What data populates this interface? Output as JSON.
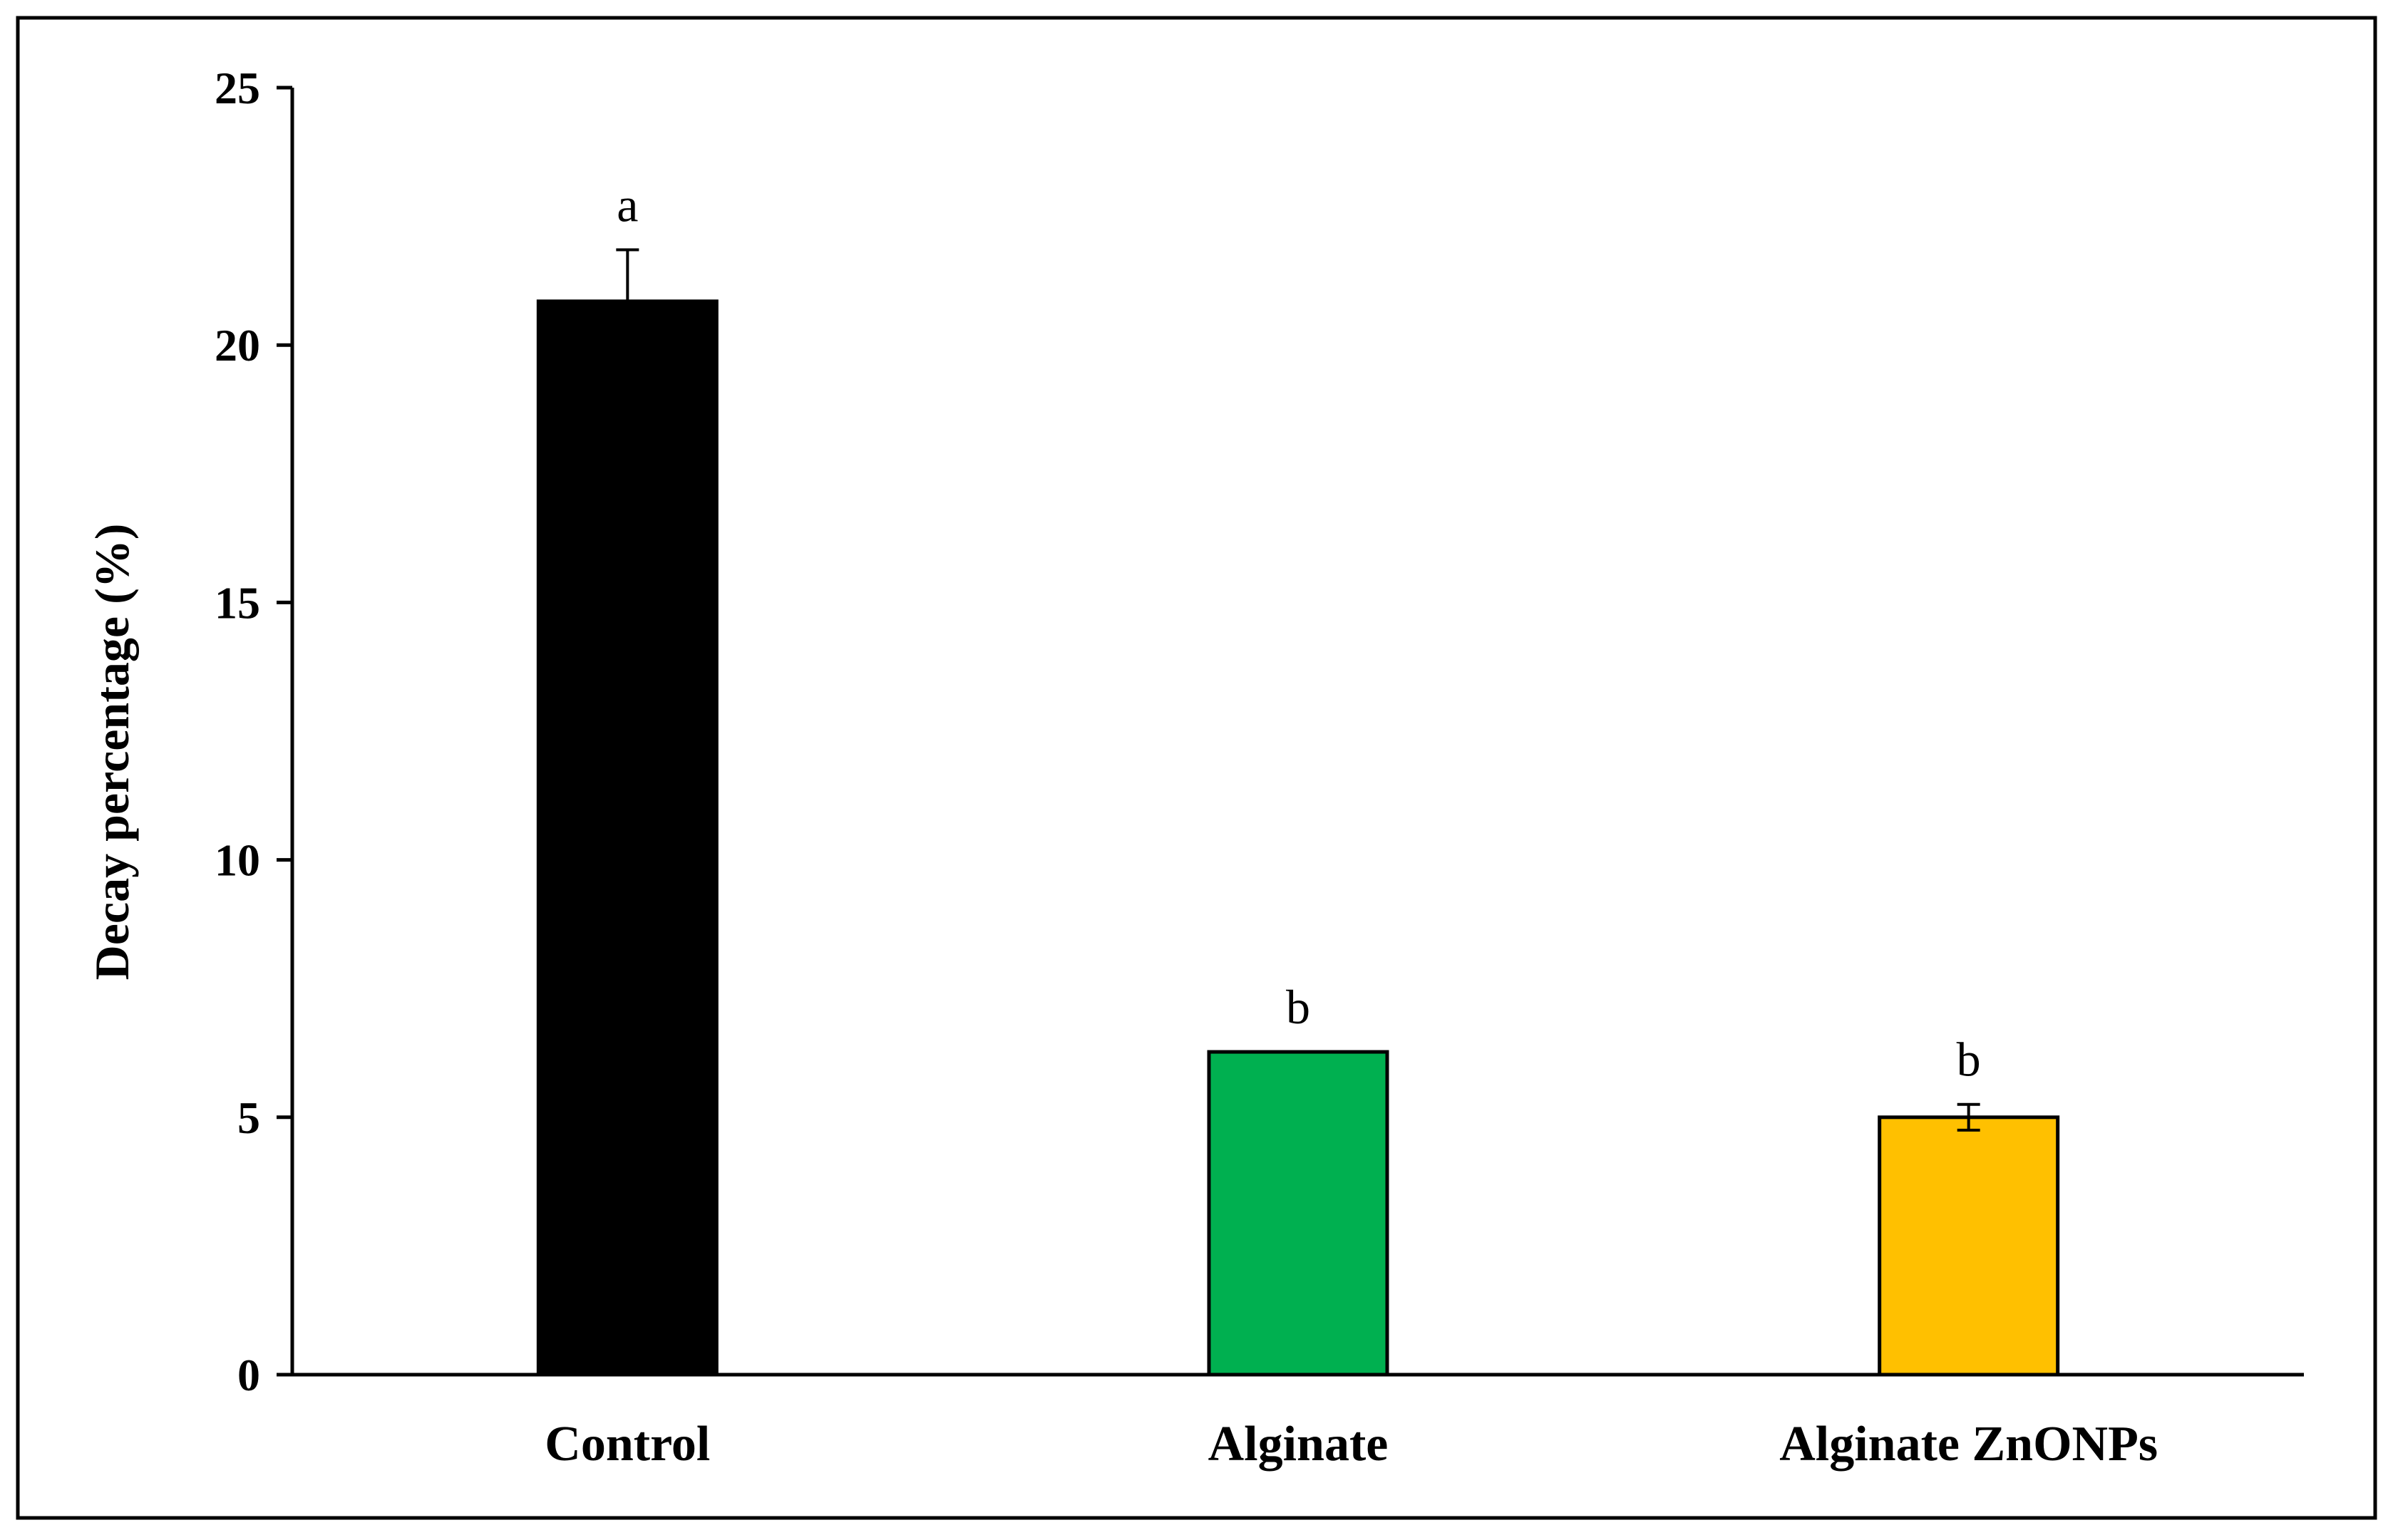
{
  "chart_data": {
    "type": "bar",
    "title": "",
    "xlabel": "",
    "ylabel": "Decay percentage (%)",
    "ylim": [
      0,
      25
    ],
    "yticks": [
      0,
      5,
      10,
      15,
      20,
      25
    ],
    "categories": [
      "Control",
      "Alginate",
      "Alginate ZnONPs"
    ],
    "values": [
      20.85,
      6.27,
      5.0
    ],
    "errors": [
      1.0,
      0.0,
      0.25
    ],
    "significance": [
      "a",
      "b",
      "b"
    ],
    "colors": [
      "#000000",
      "#00b050",
      "#ffc000"
    ],
    "grid": false,
    "legend": "none"
  }
}
